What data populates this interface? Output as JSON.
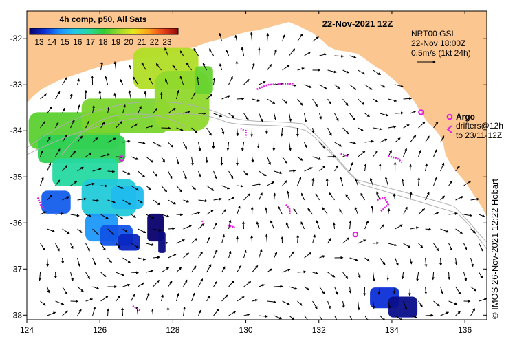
{
  "title": "22-Nov-2021 12Z",
  "colorbar": {
    "title": "4h comp, p50, All Sats",
    "ticks": [
      "13",
      "14",
      "15",
      "16",
      "17",
      "18",
      "19",
      "20",
      "21",
      "22",
      "23"
    ],
    "stops": [
      "#08006b",
      "#0b2fd6",
      "#1a8cff",
      "#22c6e8",
      "#26d9a0",
      "#33cc33",
      "#99d92b",
      "#e8e81a",
      "#ff9f1a",
      "#e8401a",
      "#8f0a0a"
    ]
  },
  "legend": {
    "model": "NRT00 GSL",
    "time": "22-Nov 18:00Z",
    "scale": "0.5m/s (1kt 24h)",
    "argo": "Argo",
    "drifters_line1": "drifters@12h",
    "drifters_line2": "to 23/11-12Z"
  },
  "credit": "© IMOS 26-Nov-2021 12:22 Hobart",
  "axes": {
    "x_ticks": [
      "124",
      "126",
      "128",
      "130",
      "132",
      "134",
      "136"
    ],
    "y_ticks": [
      "-32",
      "-33",
      "-34",
      "-35",
      "-36",
      "-37",
      "-38"
    ],
    "lon_range": [
      124,
      136.6
    ],
    "lat_range": [
      -38.1,
      -31.4
    ]
  },
  "colors": {
    "land": "#fcc690",
    "sea": "#ffffff",
    "argo": "#e020e0",
    "bathymetry": "#b0b0b0",
    "arrow": "#000000"
  },
  "argo_floats": [
    {
      "lon": 126.6,
      "lat": -34.6
    },
    {
      "lon": 133.0,
      "lat": -36.25
    },
    {
      "lon": 134.8,
      "lat": -33.6
    }
  ],
  "drifter_tracks": [
    [
      [
        130.3,
        -33.1
      ],
      [
        130.6,
        -33.0
      ],
      [
        131.0,
        -32.98
      ],
      [
        131.3,
        -32.97
      ]
    ],
    [
      [
        129.85,
        -33.95
      ],
      [
        130.0,
        -34.0
      ],
      [
        130.0,
        -34.15
      ]
    ],
    [
      [
        131.1,
        -35.6
      ],
      [
        131.2,
        -35.7
      ],
      [
        131.2,
        -35.8
      ]
    ],
    [
      [
        133.6,
        -35.5
      ],
      [
        133.8,
        -35.45
      ],
      [
        133.9,
        -35.6
      ],
      [
        133.7,
        -35.75
      ]
    ],
    [
      [
        132.6,
        -34.5
      ],
      [
        132.8,
        -34.55
      ]
    ],
    [
      [
        133.9,
        -34.55
      ],
      [
        134.15,
        -34.6
      ],
      [
        134.3,
        -34.7
      ]
    ],
    [
      [
        129.5,
        -36.05
      ],
      [
        129.7,
        -36.1
      ]
    ],
    [
      [
        128.8,
        -35.95
      ],
      [
        128.85,
        -36.05
      ]
    ],
    [
      [
        126.9,
        -37.8
      ],
      [
        127.1,
        -37.9
      ]
    ],
    [
      [
        124.3,
        -35.45
      ],
      [
        124.4,
        -35.65
      ],
      [
        124.5,
        -35.7
      ]
    ]
  ],
  "sst_patches": [
    {
      "lon": 124.05,
      "lat": -33.6,
      "w": 2.5,
      "h": 0.8,
      "temp": 18.4
    },
    {
      "lon": 125.5,
      "lat": -33.3,
      "w": 2.4,
      "h": 0.75,
      "temp": 18.7
    },
    {
      "lon": 126.9,
      "lat": -32.2,
      "w": 1.8,
      "h": 0.9,
      "temp": 19.3
    },
    {
      "lon": 127.5,
      "lat": -32.7,
      "w": 1.5,
      "h": 1.3,
      "temp": 18.9
    },
    {
      "lon": 128.6,
      "lat": -32.6,
      "w": 0.5,
      "h": 0.6,
      "temp": 18.5
    },
    {
      "lon": 124.3,
      "lat": -34.1,
      "w": 2.4,
      "h": 0.6,
      "temp": 17.7
    },
    {
      "lon": 124.7,
      "lat": -34.6,
      "w": 1.8,
      "h": 0.6,
      "temp": 17.0
    },
    {
      "lon": 125.5,
      "lat": -35.05,
      "w": 1.5,
      "h": 0.8,
      "temp": 16.2
    },
    {
      "lon": 126.3,
      "lat": -35.2,
      "w": 0.9,
      "h": 0.5,
      "temp": 15.8
    },
    {
      "lon": 124.4,
      "lat": -35.3,
      "w": 0.8,
      "h": 0.5,
      "temp": 14.5
    },
    {
      "lon": 125.6,
      "lat": -35.8,
      "w": 0.9,
      "h": 0.6,
      "temp": 15.2
    },
    {
      "lon": 126.0,
      "lat": -36.05,
      "w": 0.9,
      "h": 0.45,
      "temp": 14.4
    },
    {
      "lon": 126.5,
      "lat": -36.25,
      "w": 0.6,
      "h": 0.35,
      "temp": 13.8
    },
    {
      "lon": 127.3,
      "lat": -35.8,
      "w": 0.45,
      "h": 0.6,
      "temp": 13.0
    },
    {
      "lon": 127.6,
      "lat": -36.2,
      "w": 0.2,
      "h": 0.45,
      "temp": 13.2
    },
    {
      "lon": 133.4,
      "lat": -37.4,
      "w": 0.8,
      "h": 0.45,
      "temp": 14.0
    },
    {
      "lon": 133.9,
      "lat": -37.6,
      "w": 0.8,
      "h": 0.45,
      "temp": 13.3
    }
  ]
}
